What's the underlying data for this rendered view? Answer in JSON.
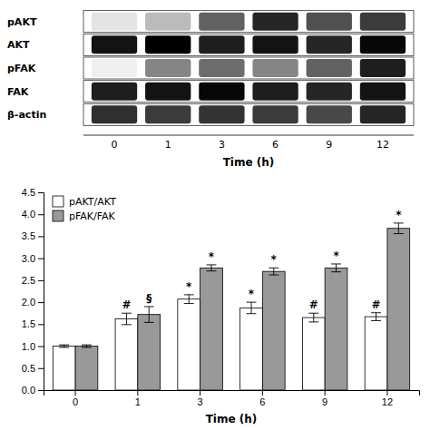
{
  "chart_data": [
    {
      "type": "heatmap",
      "xlabel": "Time (h)",
      "categories": [
        "0",
        "1",
        "3",
        "6",
        "9",
        "12"
      ],
      "series": [
        {
          "name": "pAKT",
          "values": [
            0.15,
            0.3,
            0.55,
            0.7,
            0.6,
            0.65
          ]
        },
        {
          "name": "AKT",
          "values": [
            0.75,
            0.8,
            0.72,
            0.75,
            0.7,
            0.78
          ]
        },
        {
          "name": "pFAK",
          "values": [
            0.1,
            0.45,
            0.52,
            0.45,
            0.55,
            0.72
          ]
        },
        {
          "name": "FAK",
          "values": [
            0.72,
            0.75,
            0.78,
            0.72,
            0.7,
            0.75
          ]
        },
        {
          "name": "β-actin",
          "values": [
            0.68,
            0.65,
            0.67,
            0.65,
            0.62,
            0.7
          ]
        }
      ]
    },
    {
      "type": "bar",
      "xlabel": "Time (h)",
      "categories": [
        "0",
        "1",
        "3",
        "6",
        "9",
        "12"
      ],
      "series": [
        {
          "name": "pAKT/AKT",
          "color": "#ffffff",
          "values": [
            1.0,
            1.62,
            2.07,
            1.87,
            1.65,
            1.67
          ],
          "errors": [
            0.03,
            0.13,
            0.1,
            0.13,
            0.1,
            0.09
          ],
          "annotations": [
            null,
            "#",
            "*",
            "*",
            "#",
            "#"
          ]
        },
        {
          "name": "pFAK/FAK",
          "color": "#999999",
          "values": [
            1.0,
            1.72,
            2.78,
            2.7,
            2.78,
            3.68
          ],
          "errors": [
            0.03,
            0.18,
            0.07,
            0.08,
            0.09,
            0.12
          ],
          "annotations": [
            null,
            "§",
            "*",
            "*",
            "*",
            "*"
          ]
        }
      ],
      "ylim": [
        0.0,
        4.5
      ],
      "yticks": [
        {
          "value": 0,
          "label": "0.0"
        },
        0.5,
        {
          "value": 1,
          "label": "1.0"
        },
        1.5,
        {
          "value": 2,
          "label": "2.0"
        },
        2.5,
        {
          "value": 3,
          "label": "3.0"
        },
        3.5,
        {
          "value": 4,
          "label": "4.0"
        },
        4.5
      ],
      "legend": "upper left"
    }
  ]
}
